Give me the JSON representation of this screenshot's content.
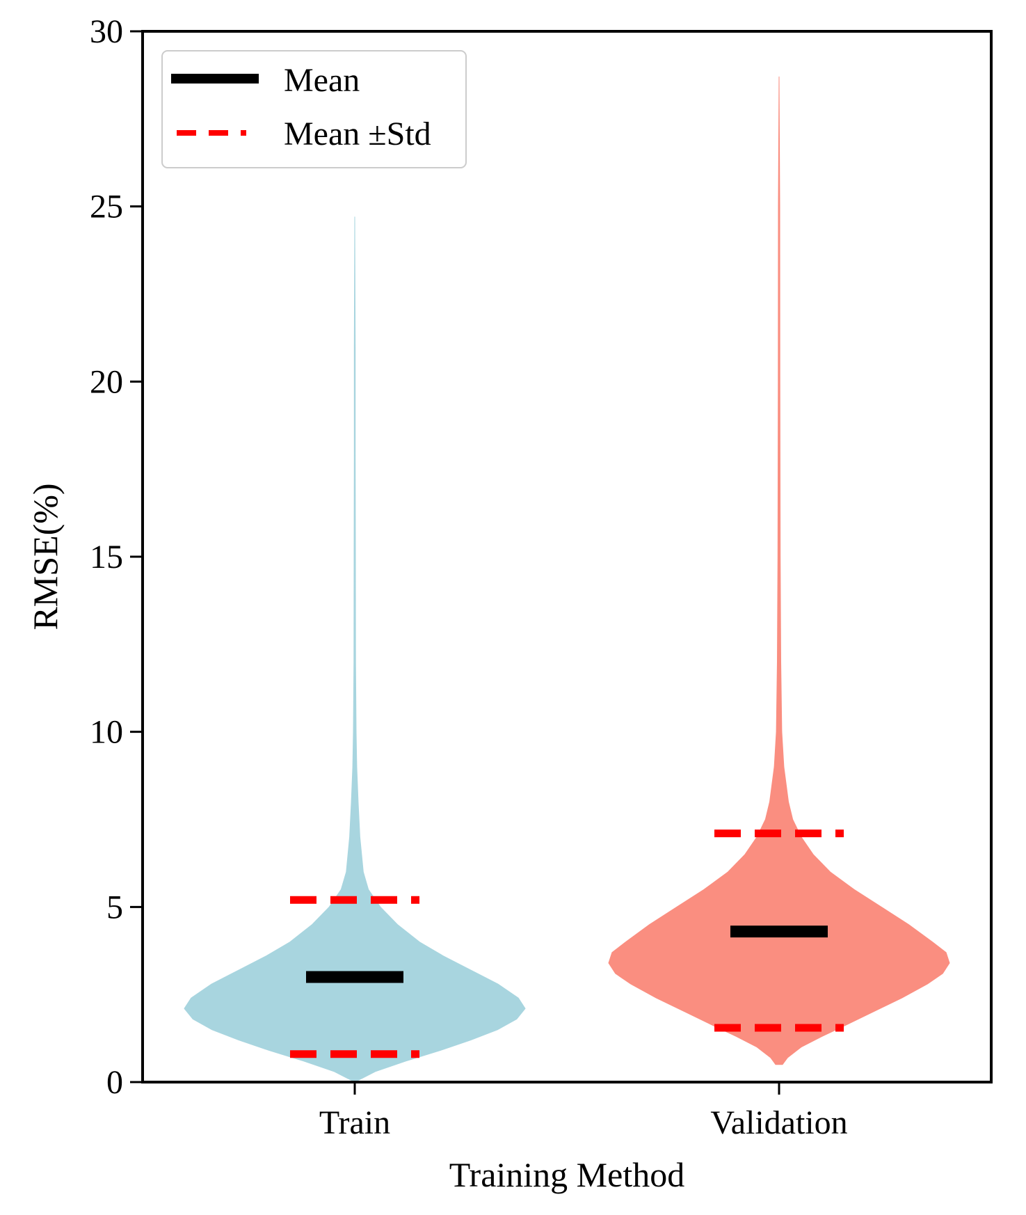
{
  "chart_data": {
    "type": "violin",
    "title": "",
    "xlabel": "Training Method",
    "ylabel": "RMSE(%)",
    "ylim": [
      0,
      30
    ],
    "yticks": [
      "0",
      "5",
      "10",
      "15",
      "20",
      "25",
      "30"
    ],
    "categories": [
      "Train",
      "Validation"
    ],
    "legend": {
      "position": "top-left",
      "entries": [
        {
          "label": "Mean",
          "style": "solid",
          "color": "#000000"
        },
        {
          "label": "Mean ±Std",
          "style": "dashed",
          "color": "#ff0000"
        }
      ]
    },
    "series": [
      {
        "name": "Train",
        "color": "#a8d5df",
        "mean": 3.0,
        "mean_minus_std": 0.8,
        "mean_plus_std": 5.2,
        "min": 0.0,
        "max": 24.7,
        "density": [
          [
            0.0,
            0.0
          ],
          [
            0.3,
            0.12
          ],
          [
            0.6,
            0.3
          ],
          [
            0.9,
            0.5
          ],
          [
            1.2,
            0.68
          ],
          [
            1.5,
            0.84
          ],
          [
            1.8,
            0.95
          ],
          [
            2.1,
            1.0
          ],
          [
            2.4,
            0.96
          ],
          [
            2.8,
            0.84
          ],
          [
            3.2,
            0.68
          ],
          [
            3.6,
            0.52
          ],
          [
            4.0,
            0.38
          ],
          [
            4.5,
            0.25
          ],
          [
            5.0,
            0.15
          ],
          [
            5.5,
            0.08
          ],
          [
            6.0,
            0.05
          ],
          [
            7.0,
            0.03
          ],
          [
            8.0,
            0.02
          ],
          [
            9.0,
            0.012
          ],
          [
            10.0,
            0.008
          ],
          [
            12.0,
            0.005
          ],
          [
            15.0,
            0.004
          ],
          [
            18.0,
            0.003
          ],
          [
            21.0,
            0.003
          ],
          [
            24.7,
            0.0
          ]
        ]
      },
      {
        "name": "Validation",
        "color": "#fa8e80",
        "mean": 4.3,
        "mean_minus_std": 1.55,
        "mean_plus_std": 7.1,
        "min": 0.5,
        "max": 28.7,
        "density": [
          [
            0.5,
            0.02
          ],
          [
            0.7,
            0.05
          ],
          [
            1.0,
            0.13
          ],
          [
            1.3,
            0.25
          ],
          [
            1.6,
            0.38
          ],
          [
            2.0,
            0.55
          ],
          [
            2.4,
            0.72
          ],
          [
            2.8,
            0.87
          ],
          [
            3.1,
            0.96
          ],
          [
            3.4,
            1.0
          ],
          [
            3.7,
            0.98
          ],
          [
            4.0,
            0.9
          ],
          [
            4.5,
            0.76
          ],
          [
            5.0,
            0.6
          ],
          [
            5.5,
            0.44
          ],
          [
            6.0,
            0.3
          ],
          [
            6.5,
            0.2
          ],
          [
            7.0,
            0.13
          ],
          [
            7.5,
            0.08
          ],
          [
            8.0,
            0.055
          ],
          [
            9.0,
            0.028
          ],
          [
            10.0,
            0.016
          ],
          [
            12.0,
            0.01
          ],
          [
            15.0,
            0.007
          ],
          [
            20.0,
            0.005
          ],
          [
            25.0,
            0.004
          ],
          [
            28.7,
            0.0
          ]
        ]
      }
    ]
  }
}
